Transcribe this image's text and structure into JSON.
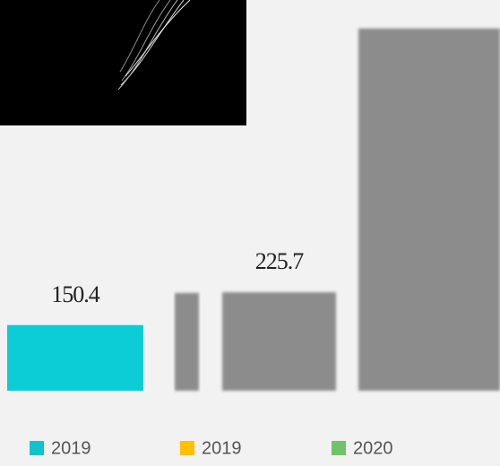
{
  "chart_data": {
    "type": "bar",
    "categories": [
      null,
      null,
      null,
      null
    ],
    "values": [
      150.4,
      224,
      225.7,
      830
    ],
    "value_labels": [
      "150.4",
      null,
      "225.7",
      null
    ],
    "colors": [
      "#0ccdd6",
      "#8c8c8c",
      "#8c8c8c",
      "#8c8c8c"
    ],
    "legend": [
      {
        "name": "2019",
        "color": "#10c4cf"
      },
      {
        "name": "2019",
        "color": "#ffc000"
      },
      {
        "name": "2020",
        "color": "#70c36a"
      }
    ]
  }
}
